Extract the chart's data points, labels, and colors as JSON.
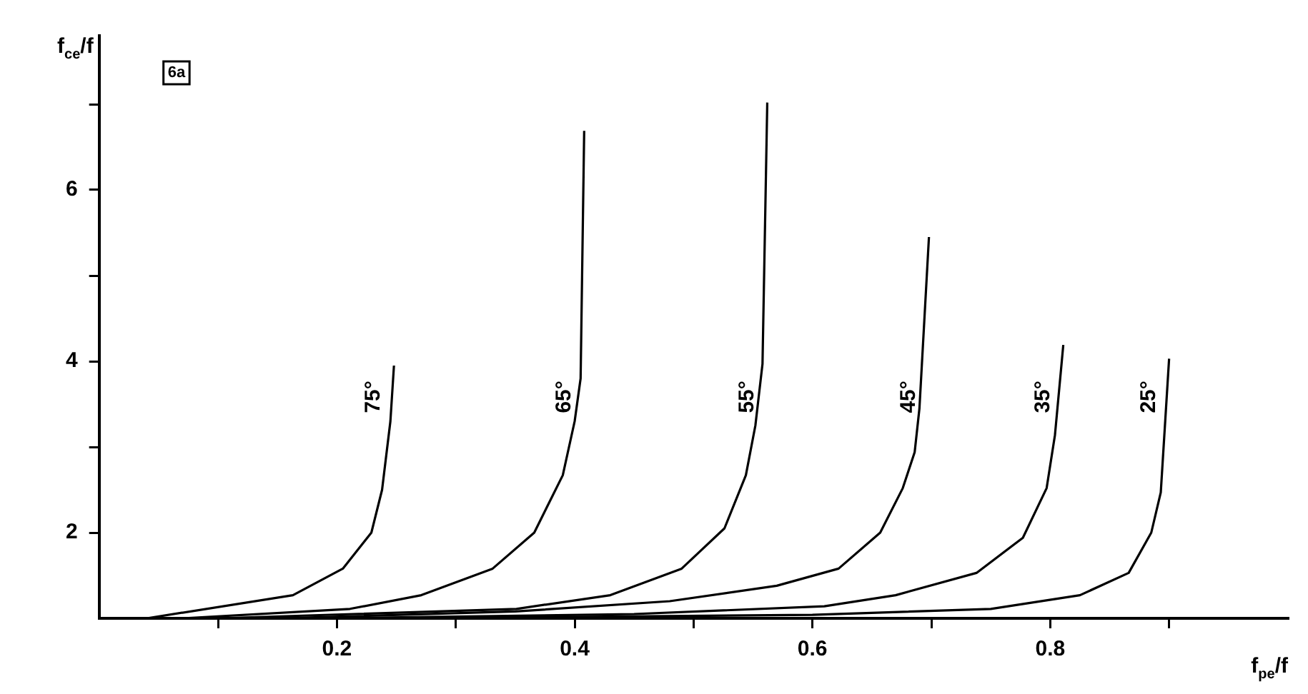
{
  "chart_data": {
    "type": "line",
    "xlabel": "f$_{pe}$/f",
    "ylabel": "f$_{ce}$/f",
    "annotations": [
      "6a"
    ],
    "legend": false,
    "marker": "none",
    "line_style": "solid",
    "grid": false,
    "xlim": [
      0,
      1
    ],
    "ylim": [
      1,
      7.8
    ],
    "xticks": [
      {
        "value": 0.1,
        "label": null
      },
      0.2,
      {
        "value": 0.3,
        "label": null
      },
      0.4,
      {
        "value": 0.5,
        "label": null
      },
      0.6,
      {
        "value": 0.7,
        "label": null
      },
      0.8,
      {
        "value": 0.9,
        "label": null
      }
    ],
    "yticks": [
      2,
      {
        "value": 3,
        "label": null
      },
      4,
      {
        "value": 5,
        "label": null
      },
      6,
      {
        "value": 7,
        "label": null
      }
    ],
    "series": [
      {
        "name": "75°",
        "color": "#000000",
        "x": [
          0.04,
          0.163,
          0.205,
          0.229,
          0.238,
          0.245,
          0.248
        ],
        "values": [
          1,
          1.27,
          1.58,
          2,
          2.5,
          3.3,
          3.95
        ]
      },
      {
        "name": "65°",
        "color": "#000000",
        "x": [
          0.07,
          0.211,
          0.271,
          0.331,
          0.366,
          0.39,
          0.4,
          0.405,
          0.408
        ],
        "values": [
          1,
          1.11,
          1.27,
          1.58,
          2,
          2.67,
          3.3,
          3.8,
          6.69
        ]
      },
      {
        "name": "55°",
        "color": "#000000",
        "x": [
          0.1,
          0.351,
          0.43,
          0.49,
          0.526,
          0.544,
          0.552,
          0.558,
          0.562
        ],
        "values": [
          1,
          1.11,
          1.27,
          1.58,
          2.05,
          2.67,
          3.25,
          3.97,
          7.02
        ]
      },
      {
        "name": "45°",
        "color": "#000000",
        "x": [
          0.15,
          0.35,
          0.48,
          0.57,
          0.622,
          0.657,
          0.676,
          0.686,
          0.69,
          0.698
        ],
        "values": [
          1,
          1.08,
          1.2,
          1.38,
          1.58,
          2,
          2.52,
          2.94,
          3.45,
          5.45
        ]
      },
      {
        "name": "35°",
        "color": "#000000",
        "x": [
          0.2,
          0.45,
          0.61,
          0.67,
          0.738,
          0.777,
          0.797,
          0.804,
          0.811
        ],
        "values": [
          1,
          1.05,
          1.14,
          1.27,
          1.53,
          1.94,
          2.52,
          3.14,
          4.19
        ]
      },
      {
        "name": "25°",
        "color": "#000000",
        "x": [
          0.25,
          0.6,
          0.75,
          0.825,
          0.866,
          0.885,
          0.893,
          0.9
        ],
        "values": [
          1,
          1.04,
          1.11,
          1.27,
          1.53,
          2,
          2.47,
          4.03
        ]
      }
    ]
  }
}
